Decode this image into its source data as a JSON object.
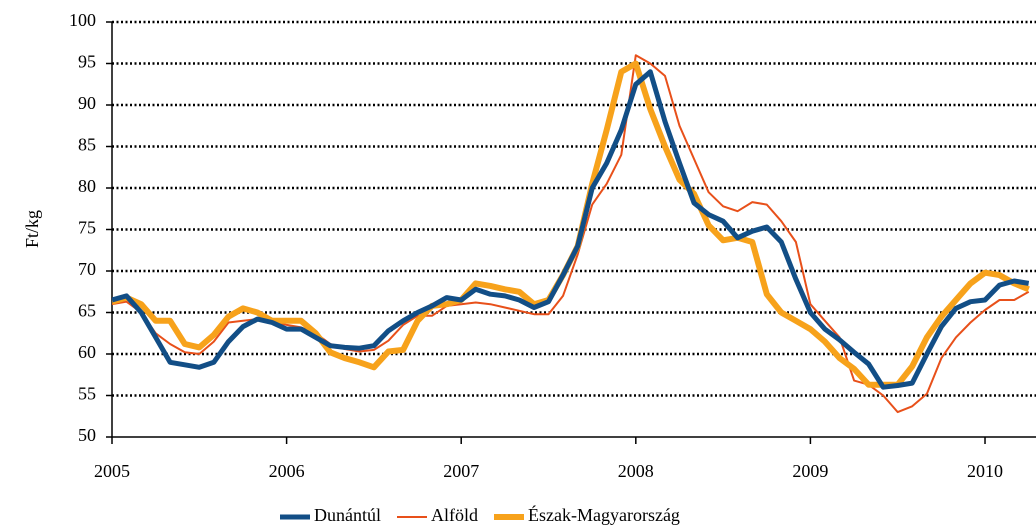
{
  "chart_data": {
    "type": "line",
    "y_label": "Ft/kg",
    "x": [
      2005,
      2005.083,
      2005.167,
      2005.25,
      2005.333,
      2005.417,
      2005.5,
      2005.583,
      2005.667,
      2005.75,
      2005.833,
      2005.917,
      2006,
      2006.083,
      2006.167,
      2006.25,
      2006.333,
      2006.417,
      2006.5,
      2006.583,
      2006.667,
      2006.75,
      2006.833,
      2006.917,
      2007,
      2007.083,
      2007.167,
      2007.25,
      2007.333,
      2007.417,
      2007.5,
      2007.583,
      2007.667,
      2007.75,
      2007.833,
      2007.917,
      2008,
      2008.083,
      2008.167,
      2008.25,
      2008.333,
      2008.417,
      2008.5,
      2008.583,
      2008.667,
      2008.75,
      2008.833,
      2008.917,
      2009,
      2009.083,
      2009.167,
      2009.25,
      2009.333,
      2009.417,
      2009.5,
      2009.583,
      2009.667,
      2009.75,
      2009.833,
      2009.917,
      2010,
      2010.083,
      2010.167,
      2010.25
    ],
    "series": [
      {
        "name": "Alföld",
        "color": "#e8501a",
        "width": 2,
        "values": [
          66,
          66.3,
          65,
          62.5,
          61.2,
          60.2,
          60,
          61.5,
          63.8,
          64,
          64.2,
          64,
          63.5,
          63.2,
          62.5,
          61.2,
          60.6,
          60.3,
          60.5,
          61.6,
          63.5,
          64.6,
          64.6,
          65.8,
          66,
          66.2,
          66,
          65.6,
          65.2,
          64.8,
          64.8,
          67,
          72,
          78,
          80.5,
          84,
          96,
          95,
          93.5,
          87.5,
          83.5,
          79.5,
          77.8,
          77.2,
          78.3,
          78,
          76,
          73.5,
          66,
          64,
          62,
          56.8,
          56.3,
          55,
          53,
          53.7,
          55.2,
          59.5,
          62,
          63.8,
          65.3,
          66.5,
          66.5,
          67.5
        ]
      },
      {
        "name": "Észak-Magyarország",
        "color": "#f7a21b",
        "width": 6,
        "values": [
          66.3,
          66.8,
          66,
          64,
          64,
          61.2,
          60.8,
          62.3,
          64.5,
          65.5,
          65,
          64,
          64,
          64,
          62.5,
          60.2,
          59.5,
          59,
          58.4,
          60.3,
          60.5,
          64,
          65.8,
          66,
          66.5,
          68.5,
          68.2,
          67.8,
          67.5,
          66,
          66.5,
          69.5,
          73,
          80.5,
          87,
          94,
          95,
          89.5,
          85,
          81,
          79.3,
          75.5,
          73.7,
          74,
          73.5,
          67.2,
          65,
          64,
          63,
          61.5,
          59.5,
          58.2,
          56.3,
          56.3,
          56.3,
          58.5,
          62,
          64.5,
          66.5,
          68.5,
          69.8,
          69.5,
          68.5,
          67.8
        ]
      },
      {
        "name": "Dunántúl",
        "color": "#124e86",
        "width": 5,
        "values": [
          66.5,
          67,
          65,
          62,
          59,
          58.7,
          58.4,
          59,
          61.5,
          63.3,
          64.2,
          63.8,
          63,
          63,
          62,
          61,
          60.8,
          60.7,
          61,
          62.8,
          64,
          65,
          65.8,
          66.8,
          66.5,
          67.8,
          67.2,
          67,
          66.5,
          65.6,
          66.3,
          69.5,
          73,
          80,
          83,
          87,
          92.5,
          94,
          88,
          83,
          78.2,
          76.8,
          76,
          74,
          74.8,
          75.3,
          73.5,
          69,
          65,
          63,
          61.7,
          60.2,
          58.8,
          56,
          56.2,
          56.5,
          60,
          63.3,
          65.5,
          66.3,
          66.5,
          68.3,
          68.8,
          68.5
        ]
      }
    ],
    "legend_order": [
      "Dunántúl",
      "Alföld",
      "Észak-Magyarország"
    ],
    "xlim": [
      2005,
      2010.292
    ],
    "xticks": [
      2005,
      2006,
      2007,
      2008,
      2009,
      2010
    ],
    "ylim": [
      50,
      100
    ],
    "yticks": [
      50,
      55,
      60,
      65,
      70,
      75,
      80,
      85,
      90,
      95,
      100
    ],
    "grid": true,
    "legend": "bottom"
  }
}
